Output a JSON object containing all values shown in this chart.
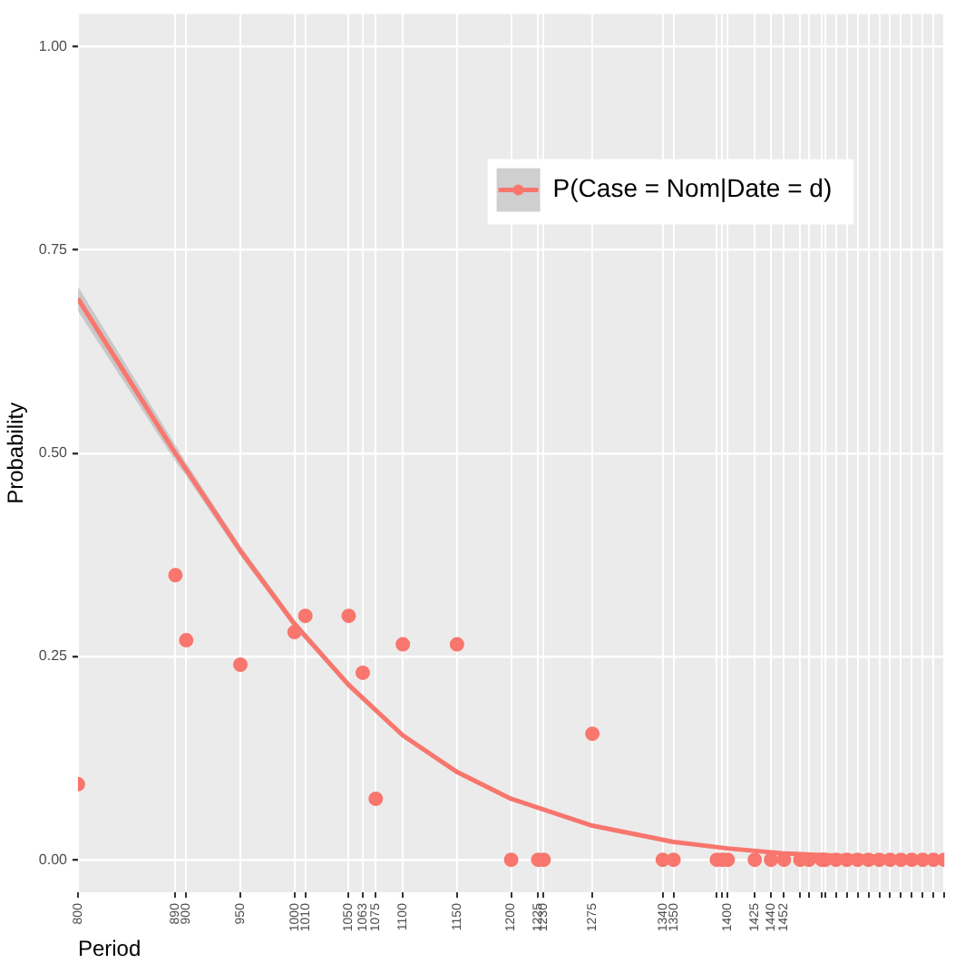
{
  "chart_data": {
    "type": "scatter",
    "xlabel": "Period",
    "ylabel": "Probability",
    "xlim": [
      800,
      1600
    ],
    "ylim": [
      -0.04,
      1.04
    ],
    "xticks": [
      800,
      890,
      900,
      950,
      1000,
      1010,
      1050,
      1063,
      1075,
      1100,
      1150,
      1200,
      1225,
      1230,
      1275,
      1340,
      1350,
      {
        "value": 1390,
        "label": null
      },
      {
        "value": 1395,
        "label": null
      },
      1400,
      1425,
      1440,
      1452,
      {
        "value": 1467,
        "label": null
      },
      {
        "value": 1475,
        "label": null
      },
      {
        "value": 1487,
        "label": null
      },
      {
        "value": 1490,
        "label": null
      },
      {
        "value": 1500,
        "label": null
      },
      {
        "value": 1510,
        "label": null
      },
      {
        "value": 1520,
        "label": null
      },
      {
        "value": 1530,
        "label": null
      },
      {
        "value": 1540,
        "label": null
      },
      {
        "value": 1550,
        "label": null
      },
      {
        "value": 1560,
        "label": null
      },
      {
        "value": 1570,
        "label": null
      },
      {
        "value": 1580,
        "label": null
      },
      {
        "value": 1590,
        "label": null
      },
      {
        "value": 1600,
        "label": null
      }
    ],
    "yticks": [
      {
        "value": 0,
        "label": "0.00"
      },
      {
        "value": 0.25,
        "label": "0.25"
      },
      {
        "value": 0.5,
        "label": "0.50"
      },
      {
        "value": 0.75,
        "label": "0.75"
      },
      {
        "value": 1,
        "label": "1.00"
      }
    ],
    "grid": true,
    "legend": "top right",
    "marker": "circle",
    "series": [
      {
        "type": "scatter",
        "color": "#f8766d",
        "x": [
          800,
          890,
          900,
          950,
          1000,
          1010,
          1050,
          1063,
          1075,
          1100,
          1150,
          1200,
          1225,
          1230,
          1275,
          1340,
          1350,
          1390,
          1395,
          1400,
          1425,
          1440,
          1452,
          1467,
          1475,
          1487,
          1490,
          1500,
          1510,
          1520,
          1530,
          1540,
          1550,
          1560,
          1570,
          1580,
          1590,
          1600
        ],
        "values": [
          0.093,
          0.35,
          0.27,
          0.24,
          0.28,
          0.3,
          0.3,
          0.23,
          0.075,
          0.265,
          0.265,
          0,
          0,
          0,
          0.155,
          0,
          0,
          0,
          0,
          0,
          0,
          0,
          0,
          0,
          0,
          0,
          0,
          0,
          0,
          0,
          0,
          0,
          0,
          0,
          0,
          0,
          0,
          0
        ]
      },
      {
        "type": "line",
        "name": "P(Case = Nom|Date = d)",
        "color": "#f8766d",
        "marker": "none",
        "x": [
          800,
          890,
          900,
          950,
          1000,
          1050,
          1100,
          1150,
          1200,
          1275,
          1350,
          1400,
          1450,
          1500,
          1600
        ],
        "values": [
          0.69,
          0.5,
          0.48,
          0.38,
          0.29,
          0.215,
          0.153,
          0.108,
          0.075,
          0.042,
          0.022,
          0.014,
          0.008,
          0.005,
          0.002
        ],
        "lower": [
          0.675,
          0.49,
          0.472,
          0.374,
          0.285,
          0.211,
          0.15,
          0.106,
          0.073,
          0.041,
          0.021,
          0.013,
          0.007,
          0.004,
          0.001
        ],
        "upper": [
          0.705,
          0.51,
          0.488,
          0.386,
          0.295,
          0.219,
          0.156,
          0.11,
          0.077,
          0.043,
          0.023,
          0.015,
          0.009,
          0.006,
          0.003
        ]
      }
    ]
  }
}
